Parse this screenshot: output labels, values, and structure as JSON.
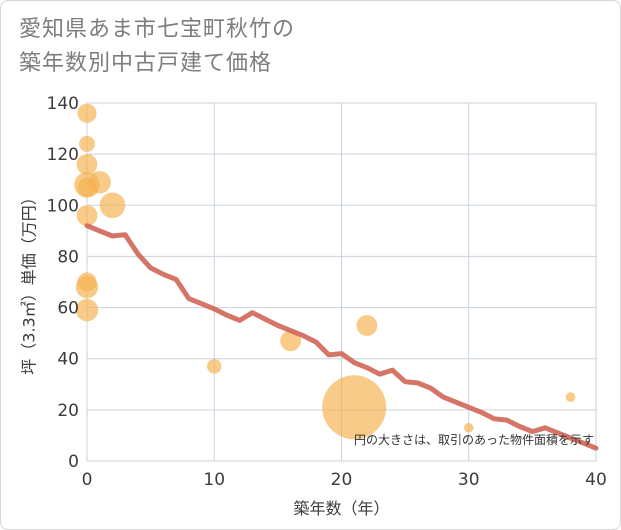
{
  "title_lines": [
    "愛知県あま市七宝町秋竹の",
    "築年数別中古戸建て価格"
  ],
  "chart_data": {
    "type": "scatter",
    "xlabel": "築年数（年）",
    "ylabel": "坪（3.3㎡）単価（万円）",
    "xlim": [
      0,
      40
    ],
    "ylim": [
      0,
      140
    ],
    "xticks": [
      0,
      10,
      20,
      30,
      40
    ],
    "yticks": [
      0,
      20,
      40,
      60,
      80,
      100,
      120,
      140
    ],
    "grid": true,
    "annotation": "円の大きさは、取引のあった物件面積を示す",
    "colors": {
      "bubble": "#f4b350",
      "trend": "#d0695a",
      "grid": "#c9d3de"
    },
    "bubbles": [
      {
        "x": 0,
        "y": 136,
        "size": 1.2
      },
      {
        "x": 0,
        "y": 124,
        "size": 1.0
      },
      {
        "x": 0,
        "y": 116,
        "size": 1.3
      },
      {
        "x": 0,
        "y": 108,
        "size": 1.6
      },
      {
        "x": 0,
        "y": 107,
        "size": 1.2
      },
      {
        "x": 1,
        "y": 109,
        "size": 1.4
      },
      {
        "x": 0,
        "y": 96,
        "size": 1.3
      },
      {
        "x": 2,
        "y": 100,
        "size": 1.6
      },
      {
        "x": 0,
        "y": 70,
        "size": 1.2
      },
      {
        "x": 0,
        "y": 68,
        "size": 1.4
      },
      {
        "x": 0,
        "y": 59,
        "size": 1.4
      },
      {
        "x": 10,
        "y": 37,
        "size": 0.9
      },
      {
        "x": 16,
        "y": 47,
        "size": 1.3
      },
      {
        "x": 21,
        "y": 21,
        "size": 4.0
      },
      {
        "x": 22,
        "y": 53,
        "size": 1.3
      },
      {
        "x": 30,
        "y": 13,
        "size": 0.6
      },
      {
        "x": 38,
        "y": 25,
        "size": 0.6
      }
    ],
    "trend": {
      "x": [
        0,
        1,
        2,
        3,
        4,
        5,
        6,
        7,
        8,
        9,
        10,
        11,
        12,
        13,
        14,
        15,
        16,
        17,
        18,
        19,
        20,
        21,
        22,
        23,
        24,
        25,
        26,
        27,
        28,
        29,
        30,
        31,
        32,
        33,
        34,
        35,
        36,
        37,
        38,
        39,
        40
      ],
      "y": [
        92,
        90,
        88,
        88.5,
        81,
        75.5,
        73,
        71,
        63.5,
        61.5,
        59.5,
        57,
        55,
        58,
        55.5,
        53,
        51,
        49,
        46.5,
        41.5,
        42,
        38.5,
        36.5,
        34,
        35.5,
        31,
        30.5,
        28.5,
        25,
        23,
        21,
        19,
        16.5,
        16,
        13.5,
        11.5,
        13,
        11,
        9,
        7,
        5
      ]
    }
  }
}
